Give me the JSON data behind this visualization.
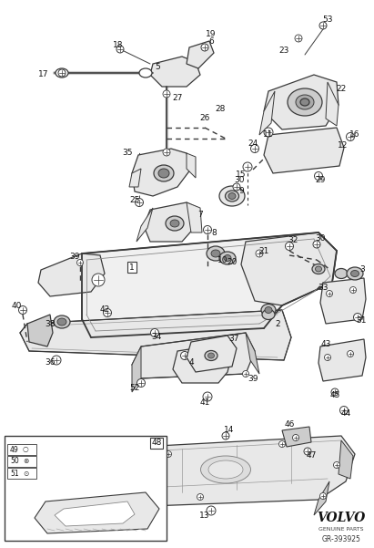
{
  "background_color": "#ffffff",
  "fig_width": 4.11,
  "fig_height": 6.01,
  "dpi": 100,
  "volvo_text": "VOLVO",
  "volvo_sub": "GENUINE PARTS",
  "part_number": "GR-393925"
}
